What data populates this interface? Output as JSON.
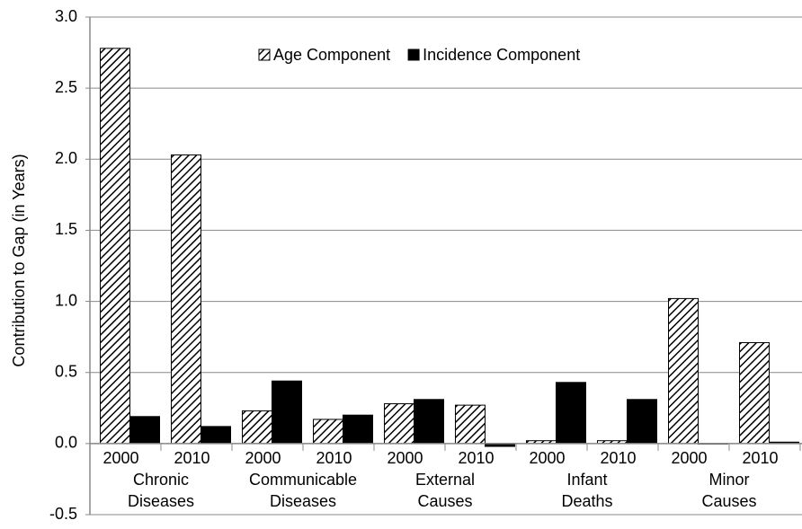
{
  "chart_data": {
    "type": "bar",
    "y_axis_label": "Contribution to Gap (in Years)",
    "categories": [
      "2000",
      "2010",
      "2000",
      "2010",
      "2000",
      "2010",
      "2000",
      "2010",
      "2000",
      "2010"
    ],
    "groups": [
      [
        "Chronic",
        "Diseases"
      ],
      [
        "Communicable",
        "Diseases"
      ],
      [
        "External",
        "Causes"
      ],
      [
        "Infant",
        "Deaths"
      ],
      [
        "Minor",
        "Causes"
      ]
    ],
    "series": [
      {
        "name": "Age Component",
        "color": "#000000",
        "pattern": "hatch",
        "values": [
          2.78,
          2.03,
          0.23,
          0.17,
          0.28,
          0.27,
          0.02,
          0.02,
          1.02,
          0.71
        ]
      },
      {
        "name": "Incidence Component",
        "color": "#000000",
        "pattern": "solid",
        "values": [
          0.19,
          0.12,
          0.44,
          0.2,
          0.31,
          -0.02,
          0.43,
          0.31,
          0.0,
          0.01
        ]
      }
    ],
    "ylim": [
      -0.5,
      3.0
    ],
    "yticks": [
      {
        "value": -0.5,
        "label": "-0.5"
      },
      {
        "value": 0,
        "label": "0.0"
      },
      {
        "value": 0.5,
        "label": "0.5"
      },
      {
        "value": 1,
        "label": "1.0"
      },
      {
        "value": 1.5,
        "label": "1.5"
      },
      {
        "value": 2,
        "label": "2.0"
      },
      {
        "value": 2.5,
        "label": "2.5"
      },
      {
        "value": 3,
        "label": "3.0"
      }
    ],
    "grid": true,
    "legend": "top"
  }
}
